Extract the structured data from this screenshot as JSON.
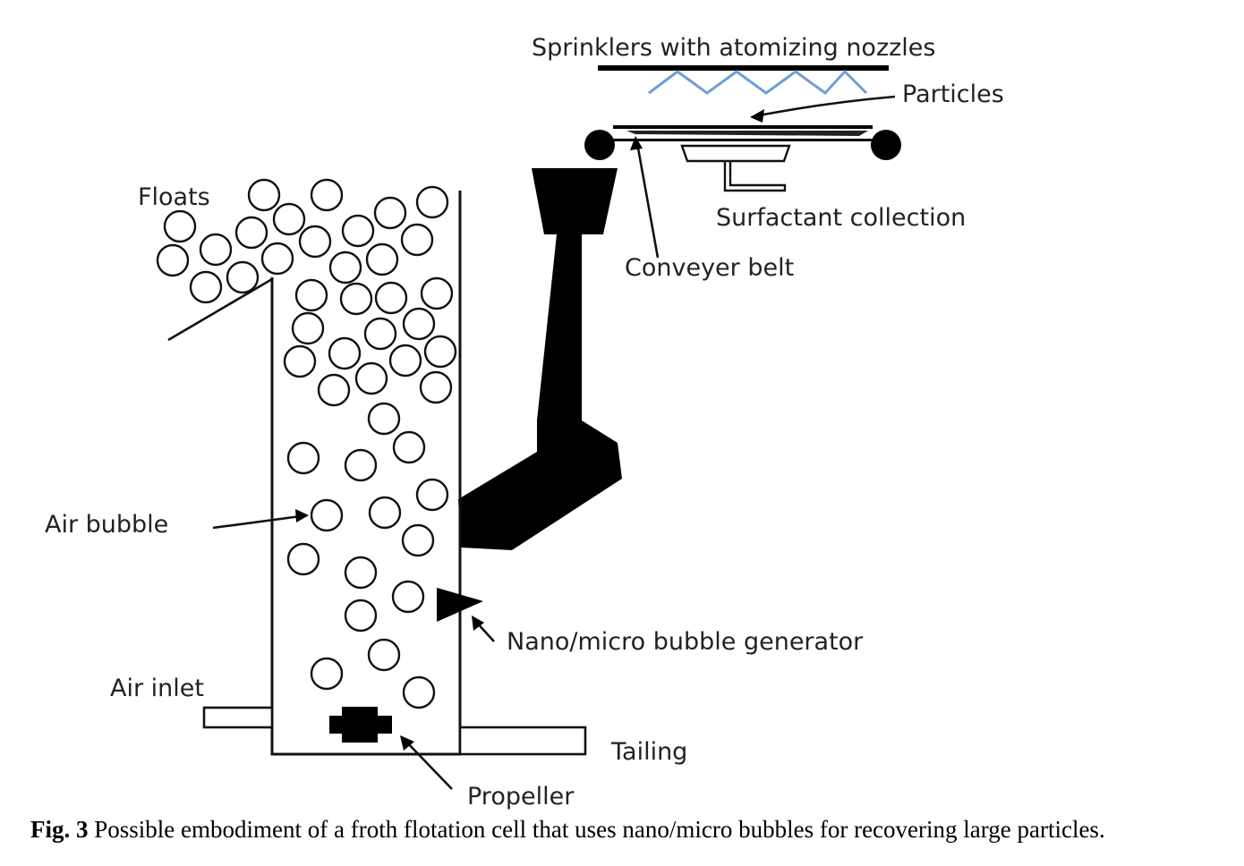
{
  "labels": {
    "sprinklers": "Sprinklers with atomizing nozzles",
    "particles": "Particles",
    "surfactant": "Surfactant collection",
    "conveyer": "Conveyer belt",
    "floats": "Floats",
    "air_bubble": "Air bubble",
    "generator": "Nano/micro bubble generator",
    "air_inlet": "Air inlet",
    "tailing": "Tailing",
    "propeller": "Propeller"
  },
  "caption": {
    "prefix": "Fig. 3",
    "text": " Possible embodiment of a froth flotation cell that uses nano/micro bubbles for recovering large particles."
  },
  "colors": {
    "nozzle_spray": "#6f9ed6",
    "ink": "#000000"
  }
}
